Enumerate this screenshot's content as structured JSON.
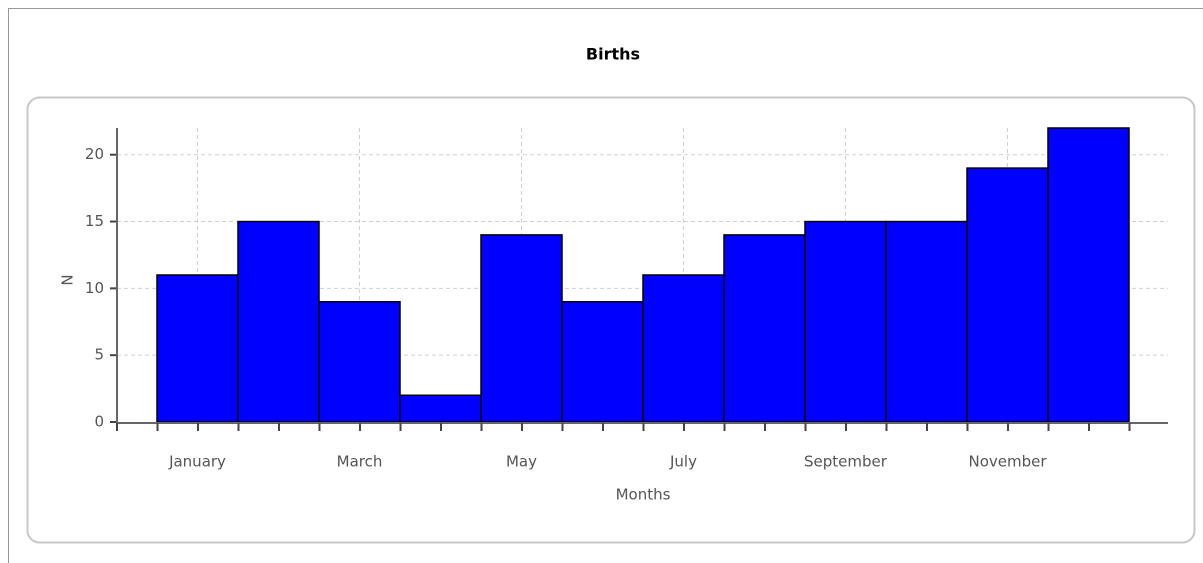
{
  "chart_data": {
    "type": "bar",
    "title": "Births",
    "x_label": "Months",
    "y_label": "N",
    "categories": [
      "January",
      null,
      "March",
      null,
      "May",
      null,
      "July",
      null,
      "September",
      null,
      "November",
      null
    ],
    "values": [
      11,
      15,
      9,
      2,
      14,
      9,
      11,
      14,
      15,
      15,
      19,
      22
    ],
    "color": "#0000ff",
    "ylim": [
      0,
      22
    ],
    "yticks": [
      0,
      5,
      10,
      15,
      20
    ],
    "grid": true
  }
}
